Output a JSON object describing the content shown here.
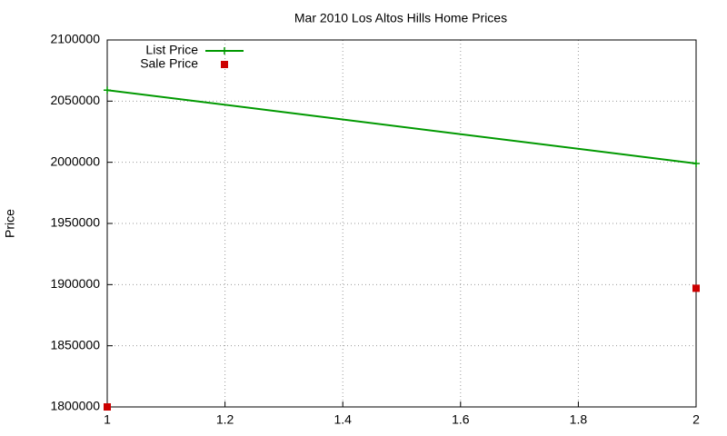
{
  "chart_data": {
    "type": "line",
    "title": "Mar 2010 Los Altos Hills Home Prices",
    "ylabel": "Price",
    "x": [
      1,
      2
    ],
    "series": [
      {
        "name": "List Price",
        "color": "#009900",
        "style": "linespoints",
        "values": [
          2059000,
          1999000
        ]
      },
      {
        "name": "Sale Price",
        "color": "#cc0000",
        "style": "points",
        "values": [
          1800000,
          1897000
        ]
      }
    ],
    "xlim": [
      1,
      2
    ],
    "xticks": [
      1,
      1.2,
      1.4,
      1.6,
      1.8,
      2
    ],
    "ylim": [
      1800000,
      2100000
    ],
    "yticks": [
      1800000,
      1850000,
      1900000,
      1950000,
      2000000,
      2050000,
      2100000
    ],
    "grid": true,
    "legend": "top-left"
  }
}
